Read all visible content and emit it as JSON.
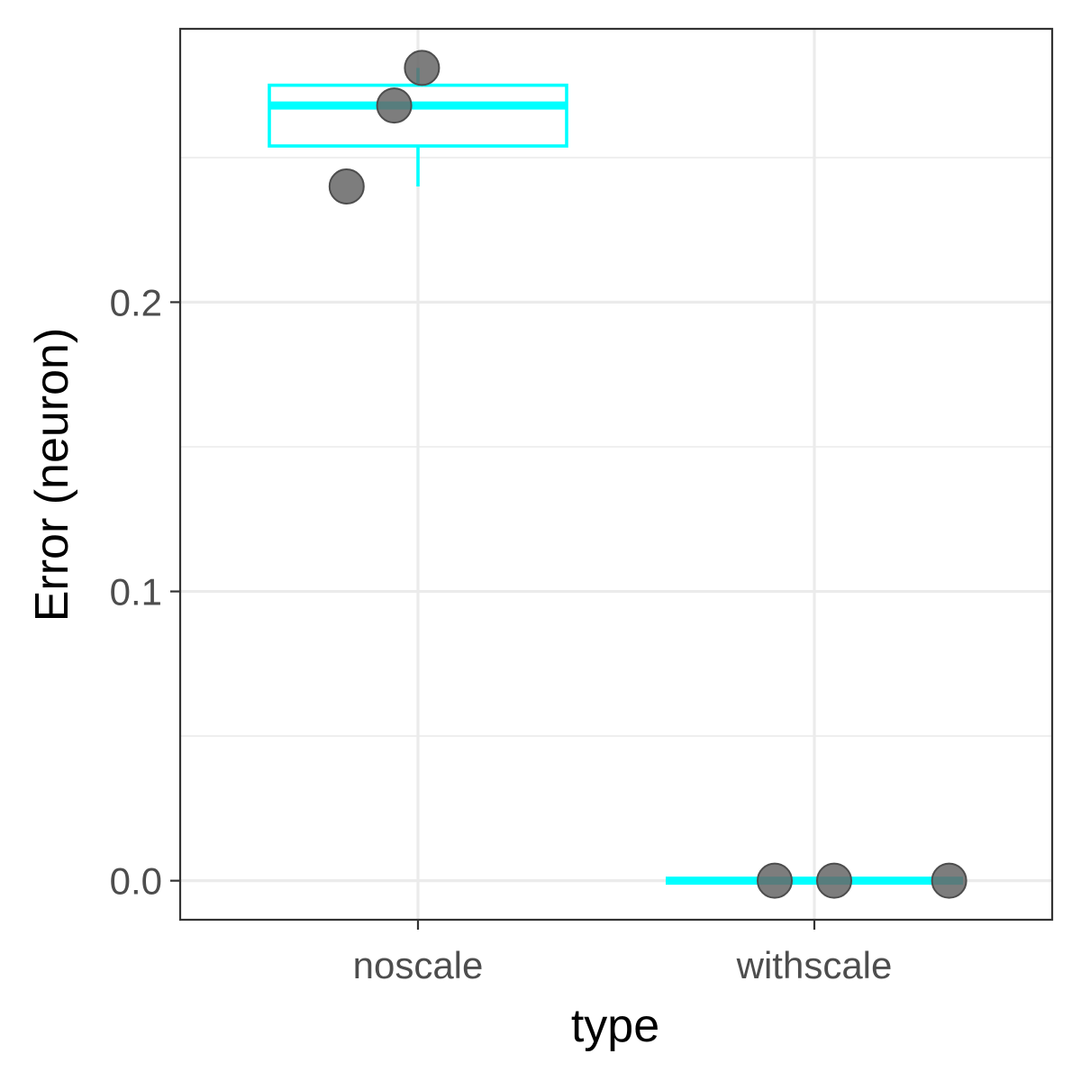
{
  "chart_data": {
    "type": "boxplot",
    "title": "",
    "xlabel": "type",
    "ylabel": "Error (neuron)",
    "categories": [
      "noscale",
      "withscale"
    ],
    "ylim": [
      -0.0135,
      0.2945
    ],
    "yticks": [
      0.0,
      0.1,
      0.2
    ],
    "ytick_labels": [
      "0.0",
      "0.1",
      "0.2"
    ],
    "grid": true,
    "legend": "none",
    "colors": {
      "box": "#00FFFF",
      "point": "#666666",
      "grid": "#EBEBEB",
      "border": "#333333"
    },
    "boxes": [
      {
        "category": "noscale",
        "min": 0.24,
        "q1": 0.254,
        "median": 0.268,
        "q3": 0.275,
        "max": 0.281
      },
      {
        "category": "withscale",
        "min": 0.0,
        "q1": 0.0,
        "median": 0.0,
        "q3": 0.0,
        "max": 0.0
      }
    ],
    "points": [
      {
        "category": "noscale",
        "jitter": 0.01,
        "y": 0.281
      },
      {
        "category": "noscale",
        "jitter": -0.06,
        "y": 0.268
      },
      {
        "category": "noscale",
        "jitter": -0.18,
        "y": 0.24
      },
      {
        "category": "withscale",
        "jitter": -0.1,
        "y": 0.0
      },
      {
        "category": "withscale",
        "jitter": 0.05,
        "y": 0.0
      },
      {
        "category": "withscale",
        "jitter": 0.34,
        "y": 0.0
      }
    ]
  }
}
